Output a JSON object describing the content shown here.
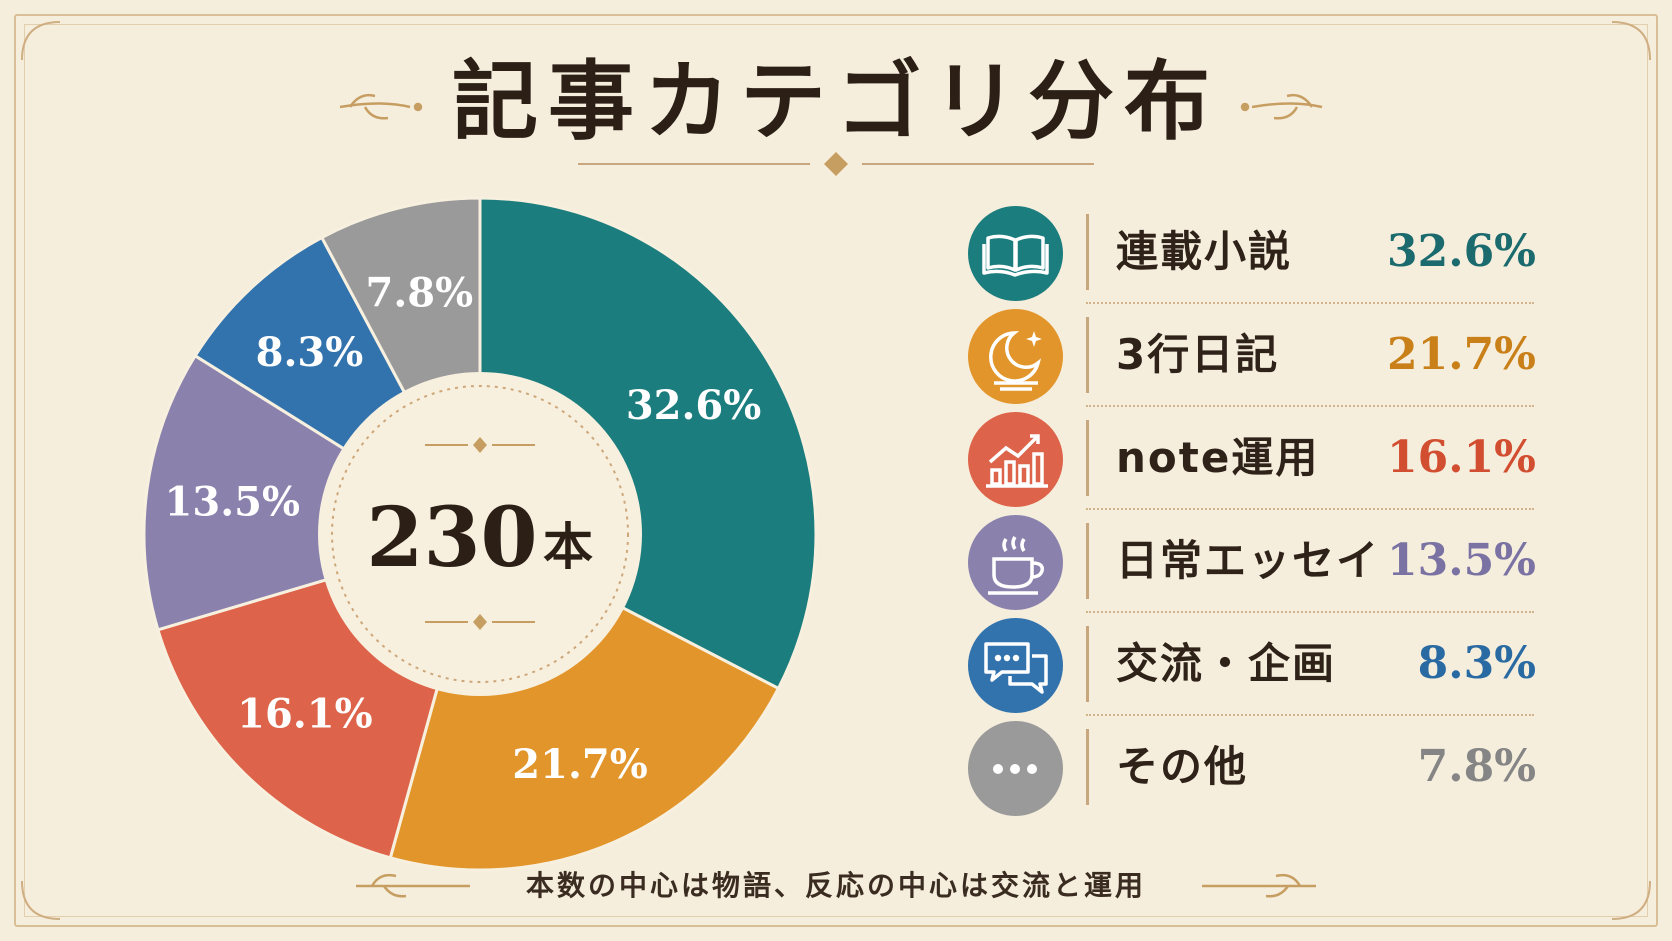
{
  "title": "記事カテゴリ分布",
  "subtitle": "本数の中心は物語、反応の中心は交流と運用",
  "center": {
    "total": "230",
    "unit": "本"
  },
  "chart_data": {
    "type": "pie",
    "title": "記事カテゴリ分布",
    "total": 230,
    "categories": [
      "連載小説",
      "3行日記",
      "note運用",
      "日常エッセイ",
      "交流・企画",
      "その他"
    ],
    "values": [
      32.6,
      21.7,
      16.1,
      13.5,
      8.3,
      7.8
    ],
    "labels": [
      "32.6%",
      "21.7%",
      "16.1%",
      "13.5%",
      "8.3%",
      "7.8%"
    ],
    "colors": [
      "#1b7d7d",
      "#e2952a",
      "#dd644a",
      "#8a82ad",
      "#3273ad",
      "#9a9a9a"
    ],
    "legend_position": "right",
    "donut": true
  },
  "legend": [
    {
      "label": "連載小説",
      "value": "32.6%",
      "icon": "open-book-icon",
      "color": "#1b7d7d",
      "value_color": "#1a6a6e"
    },
    {
      "label": "3行日記",
      "value": "21.7%",
      "icon": "moon-icon",
      "color": "#e2952a",
      "value_color": "#c98018"
    },
    {
      "label": "note運用",
      "value": "16.1%",
      "icon": "growth-chart-icon",
      "color": "#dd644a",
      "value_color": "#d24e31"
    },
    {
      "label": "日常エッセイ",
      "value": "13.5%",
      "icon": "coffee-cup-icon",
      "color": "#8a82ad",
      "value_color": "#7a72a2"
    },
    {
      "label": "交流・企画",
      "value": "8.3%",
      "icon": "chat-bubbles-icon",
      "color": "#3273ad",
      "value_color": "#2a6aa3"
    },
    {
      "label": "その他",
      "value": "7.8%",
      "icon": "more-dots-icon",
      "color": "#9a9a9a",
      "value_color": "#858585"
    }
  ]
}
